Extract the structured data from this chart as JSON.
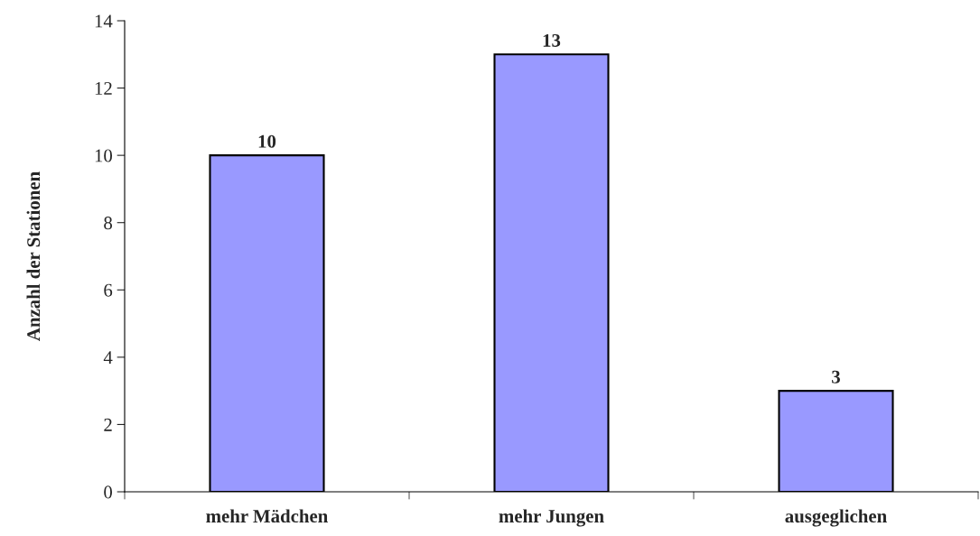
{
  "chart_data": {
    "type": "bar",
    "ylabel": "Anzahl der Stationen",
    "categories": [
      "mehr Mädchen",
      "mehr Jungen",
      "ausgeglichen"
    ],
    "values": [
      10,
      13,
      3
    ],
    "color": "#9999ff",
    "ylim": [
      0,
      14
    ],
    "yticks": [
      0,
      2,
      4,
      6,
      8,
      10,
      12,
      14
    ],
    "grid": false,
    "data_labels": true
  }
}
